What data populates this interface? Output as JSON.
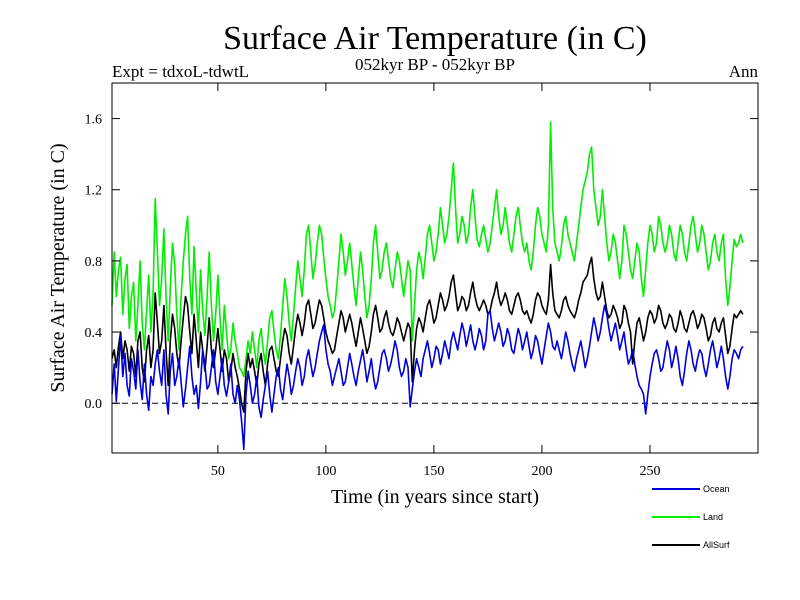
{
  "chart_data": {
    "type": "line",
    "title": "Surface Air Temperature (in C)",
    "subtitle_left": "Expt = tdxoL-tdwtL",
    "subtitle_center": "052kyr BP - 052kyr BP",
    "subtitle_right": "Ann",
    "xlabel": "Time (in years since start)",
    "ylabel": "Surface Air Temperature (in C)",
    "xlim": [
      1,
      300
    ],
    "ylim": [
      -0.28,
      1.8
    ],
    "x_ticks": [
      50,
      100,
      150,
      200,
      250
    ],
    "y_ticks": [
      0.0,
      0.4,
      0.8,
      1.2,
      1.6
    ],
    "y_tick_labels": [
      "0.0",
      "0.4",
      "0.8",
      "1.2",
      "1.6"
    ],
    "zero_line": {
      "y": 0.0,
      "style": "dashed"
    },
    "legend_placement": "below-right",
    "x_step": 1,
    "series": [
      {
        "name": "Ocean",
        "color": "#0000dd",
        "values": [
          0.05,
          0.22,
          0.01,
          0.2,
          0.38,
          0.15,
          0.28,
          0.1,
          0.04,
          0.25,
          0.18,
          0.08,
          0.3,
          0.12,
          0.02,
          0.22,
          0.05,
          -0.04,
          0.15,
          0.1,
          0.22,
          0.3,
          0.18,
          0.1,
          0.3,
          0.05,
          -0.06,
          0.18,
          0.28,
          0.1,
          0.15,
          0.25,
          0.12,
          -0.02,
          0.08,
          0.2,
          0.32,
          0.15,
          0.05,
          0.1,
          -0.03,
          0.12,
          0.3,
          0.22,
          0.08,
          0.1,
          0.2,
          0.3,
          0.12,
          0.05,
          0.15,
          0.25,
          0.1,
          0.04,
          0.12,
          0.22,
          0.05,
          0.0,
          0.1,
          0.02,
          -0.1,
          -0.26,
          0.05,
          0.18,
          0.1,
          0.0,
          0.05,
          0.15,
          -0.02,
          -0.08,
          0.02,
          0.1,
          0.18,
          0.05,
          -0.05,
          0.05,
          0.15,
          0.2,
          0.08,
          0.02,
          0.12,
          0.22,
          0.15,
          0.05,
          0.1,
          0.18,
          0.25,
          0.2,
          0.1,
          0.15,
          0.25,
          0.3,
          0.22,
          0.15,
          0.2,
          0.28,
          0.35,
          0.4,
          0.44,
          0.3,
          0.22,
          0.18,
          0.1,
          0.15,
          0.2,
          0.25,
          0.18,
          0.1,
          0.12,
          0.2,
          0.28,
          0.22,
          0.15,
          0.1,
          0.18,
          0.24,
          0.3,
          0.22,
          0.12,
          0.18,
          0.25,
          0.15,
          0.08,
          0.12,
          0.2,
          0.28,
          0.3,
          0.25,
          0.18,
          0.22,
          0.28,
          0.35,
          0.3,
          0.2,
          0.15,
          0.18,
          0.25,
          0.2,
          -0.02,
          0.08,
          0.18,
          0.25,
          0.2,
          0.15,
          0.25,
          0.3,
          0.35,
          0.28,
          0.2,
          0.25,
          0.32,
          0.3,
          0.22,
          0.28,
          0.35,
          0.3,
          0.25,
          0.35,
          0.4,
          0.35,
          0.3,
          0.38,
          0.45,
          0.4,
          0.32,
          0.38,
          0.44,
          0.35,
          0.3,
          0.35,
          0.42,
          0.38,
          0.3,
          0.35,
          0.5,
          0.52,
          0.42,
          0.35,
          0.4,
          0.45,
          0.4,
          0.32,
          0.35,
          0.42,
          0.38,
          0.3,
          0.28,
          0.35,
          0.42,
          0.38,
          0.3,
          0.35,
          0.4,
          0.32,
          0.25,
          0.3,
          0.38,
          0.35,
          0.28,
          0.22,
          0.3,
          0.38,
          0.45,
          0.4,
          0.32,
          0.3,
          0.35,
          0.3,
          0.25,
          0.32,
          0.4,
          0.35,
          0.28,
          0.22,
          0.18,
          0.25,
          0.3,
          0.35,
          0.28,
          0.2,
          0.25,
          0.32,
          0.4,
          0.48,
          0.42,
          0.35,
          0.4,
          0.48,
          0.55,
          0.5,
          0.42,
          0.35,
          0.4,
          0.45,
          0.38,
          0.3,
          0.35,
          0.4,
          0.3,
          0.22,
          0.25,
          0.3,
          0.22,
          0.15,
          0.1,
          0.08,
          0.05,
          -0.06,
          0.05,
          0.15,
          0.22,
          0.28,
          0.3,
          0.25,
          0.18,
          0.2,
          0.28,
          0.35,
          0.3,
          0.2,
          0.25,
          0.32,
          0.25,
          0.15,
          0.1,
          0.18,
          0.28,
          0.35,
          0.3,
          0.22,
          0.18,
          0.25,
          0.3,
          0.28,
          0.2,
          0.15,
          0.22,
          0.3,
          0.35,
          0.28,
          0.2,
          0.25,
          0.32,
          0.25,
          0.15,
          0.08,
          0.15,
          0.25,
          0.3,
          0.28,
          0.25,
          0.3,
          0.32
        ]
      },
      {
        "name": "Land",
        "color": "#00ee00",
        "values": [
          0.55,
          0.85,
          0.6,
          0.75,
          0.82,
          0.5,
          0.7,
          0.78,
          0.42,
          0.6,
          0.68,
          0.35,
          0.55,
          0.8,
          0.45,
          0.3,
          0.52,
          0.72,
          0.4,
          0.62,
          1.15,
          0.85,
          0.55,
          0.7,
          0.98,
          0.6,
          0.35,
          0.65,
          0.9,
          0.78,
          0.5,
          0.3,
          0.6,
          0.8,
          0.95,
          1.05,
          0.7,
          0.5,
          0.88,
          0.62,
          0.4,
          0.75,
          0.52,
          0.38,
          0.6,
          0.85,
          0.55,
          0.35,
          0.5,
          0.72,
          0.48,
          0.3,
          0.55,
          0.4,
          0.25,
          0.3,
          0.45,
          0.35,
          0.28,
          0.2,
          0.18,
          0.15,
          0.25,
          0.35,
          0.28,
          0.4,
          0.3,
          0.2,
          0.35,
          0.42,
          0.3,
          0.22,
          0.35,
          0.48,
          0.52,
          0.4,
          0.3,
          0.25,
          0.38,
          0.55,
          0.7,
          0.6,
          0.45,
          0.35,
          0.5,
          0.65,
          0.8,
          0.7,
          0.6,
          0.75,
          0.95,
          1.0,
          0.85,
          0.7,
          0.78,
          0.9,
          1.0,
          0.95,
          0.82,
          0.7,
          0.6,
          0.55,
          0.48,
          0.52,
          0.65,
          0.8,
          0.95,
          0.85,
          0.72,
          0.8,
          0.9,
          0.78,
          0.65,
          0.55,
          0.7,
          0.85,
          0.75,
          0.6,
          0.48,
          0.55,
          0.7,
          0.9,
          1.0,
          0.85,
          0.7,
          0.75,
          0.85,
          0.9,
          0.8,
          0.7,
          0.65,
          0.75,
          0.85,
          0.8,
          0.7,
          0.6,
          0.7,
          0.8,
          0.75,
          0.35,
          0.55,
          0.75,
          0.85,
          0.8,
          0.7,
          0.82,
          0.95,
          1.0,
          0.9,
          0.8,
          0.85,
          0.95,
          1.1,
          1.0,
          0.9,
          0.95,
          1.05,
          1.2,
          1.35,
          1.1,
          0.9,
          0.95,
          1.05,
          1.0,
          0.9,
          0.95,
          1.1,
          1.2,
          1.05,
          0.92,
          0.88,
          0.95,
          1.0,
          0.92,
          0.85,
          0.9,
          1.0,
          1.1,
          1.2,
          1.05,
          0.95,
          1.0,
          1.1,
          1.0,
          0.9,
          0.85,
          0.95,
          1.05,
          1.1,
          1.0,
          0.9,
          0.85,
          0.9,
          0.8,
          0.75,
          0.85,
          1.0,
          1.1,
          1.05,
          0.95,
          0.9,
          0.85,
          1.0,
          1.58,
          1.1,
          0.9,
          0.85,
          0.8,
          0.88,
          1.0,
          1.05,
          0.95,
          0.9,
          0.85,
          0.8,
          0.9,
          1.0,
          1.1,
          1.2,
          1.25,
          1.3,
          1.4,
          1.44,
          1.2,
          1.1,
          1.0,
          1.05,
          1.2,
          1.05,
          0.9,
          0.8,
          0.85,
          0.95,
          0.9,
          0.8,
          0.7,
          0.8,
          1.0,
          0.95,
          0.85,
          0.75,
          0.7,
          0.8,
          0.9,
          0.85,
          0.7,
          0.6,
          0.75,
          0.9,
          1.0,
          0.95,
          0.85,
          0.9,
          1.05,
          1.0,
          0.9,
          0.85,
          0.9,
          1.0,
          0.95,
          0.85,
          0.8,
          0.9,
          1.0,
          0.95,
          0.85,
          0.8,
          0.9,
          1.0,
          1.05,
          0.95,
          0.85,
          0.9,
          1.0,
          0.95,
          0.85,
          0.75,
          0.8,
          0.9,
          0.95,
          0.85,
          0.8,
          0.9,
          0.95,
          0.7,
          0.55,
          0.65,
          0.8,
          0.92,
          0.88,
          0.9,
          0.95,
          0.9
        ]
      },
      {
        "name": "AllSurf",
        "color": "#000000",
        "values": [
          0.25,
          0.3,
          0.2,
          0.32,
          0.4,
          0.25,
          0.35,
          0.3,
          0.18,
          0.32,
          0.28,
          0.15,
          0.35,
          0.4,
          0.2,
          0.12,
          0.3,
          0.38,
          0.2,
          0.3,
          0.62,
          0.45,
          0.28,
          0.35,
          0.55,
          0.3,
          0.1,
          0.35,
          0.5,
          0.42,
          0.28,
          0.2,
          0.35,
          0.48,
          0.6,
          0.55,
          0.4,
          0.28,
          0.5,
          0.35,
          0.2,
          0.4,
          0.3,
          0.18,
          0.32,
          0.48,
          0.3,
          0.2,
          0.3,
          0.42,
          0.3,
          0.18,
          0.3,
          0.25,
          0.12,
          0.18,
          0.28,
          0.2,
          0.15,
          0.08,
          0.0,
          -0.05,
          0.18,
          0.28,
          0.2,
          0.25,
          0.18,
          0.1,
          0.22,
          0.28,
          0.18,
          0.1,
          0.22,
          0.3,
          0.32,
          0.25,
          0.18,
          0.15,
          0.25,
          0.35,
          0.42,
          0.38,
          0.28,
          0.22,
          0.32,
          0.42,
          0.5,
          0.45,
          0.38,
          0.45,
          0.55,
          0.58,
          0.5,
          0.42,
          0.45,
          0.52,
          0.58,
          0.55,
          0.48,
          0.4,
          0.35,
          0.32,
          0.28,
          0.3,
          0.38,
          0.45,
          0.52,
          0.48,
          0.4,
          0.45,
          0.5,
          0.45,
          0.38,
          0.32,
          0.4,
          0.48,
          0.42,
          0.35,
          0.28,
          0.32,
          0.4,
          0.5,
          0.55,
          0.48,
          0.4,
          0.42,
          0.48,
          0.52,
          0.45,
          0.4,
          0.38,
          0.42,
          0.48,
          0.45,
          0.4,
          0.35,
          0.4,
          0.45,
          0.42,
          0.12,
          0.3,
          0.42,
          0.48,
          0.45,
          0.4,
          0.48,
          0.55,
          0.58,
          0.52,
          0.45,
          0.48,
          0.55,
          0.62,
          0.58,
          0.52,
          0.55,
          0.6,
          0.68,
          0.72,
          0.62,
          0.52,
          0.55,
          0.6,
          0.58,
          0.52,
          0.55,
          0.62,
          0.68,
          0.6,
          0.55,
          0.52,
          0.55,
          0.58,
          0.55,
          0.5,
          0.52,
          0.58,
          0.62,
          0.68,
          0.6,
          0.55,
          0.58,
          0.62,
          0.58,
          0.52,
          0.5,
          0.55,
          0.6,
          0.62,
          0.58,
          0.52,
          0.5,
          0.52,
          0.48,
          0.45,
          0.5,
          0.58,
          0.62,
          0.6,
          0.55,
          0.52,
          0.5,
          0.58,
          0.78,
          0.62,
          0.52,
          0.5,
          0.48,
          0.52,
          0.58,
          0.6,
          0.55,
          0.52,
          0.5,
          0.48,
          0.52,
          0.58,
          0.62,
          0.68,
          0.7,
          0.72,
          0.78,
          0.82,
          0.7,
          0.62,
          0.58,
          0.6,
          0.68,
          0.6,
          0.52,
          0.48,
          0.5,
          0.55,
          0.52,
          0.48,
          0.42,
          0.45,
          0.55,
          0.52,
          0.45,
          0.4,
          0.22,
          0.35,
          0.45,
          0.48,
          0.42,
          0.35,
          0.4,
          0.48,
          0.52,
          0.5,
          0.45,
          0.48,
          0.55,
          0.52,
          0.45,
          0.42,
          0.45,
          0.5,
          0.48,
          0.42,
          0.4,
          0.45,
          0.52,
          0.48,
          0.42,
          0.4,
          0.45,
          0.5,
          0.52,
          0.48,
          0.42,
          0.45,
          0.5,
          0.48,
          0.42,
          0.35,
          0.38,
          0.45,
          0.48,
          0.42,
          0.4,
          0.45,
          0.48,
          0.38,
          0.28,
          0.32,
          0.42,
          0.5,
          0.48,
          0.5,
          0.52,
          0.5
        ]
      }
    ]
  }
}
